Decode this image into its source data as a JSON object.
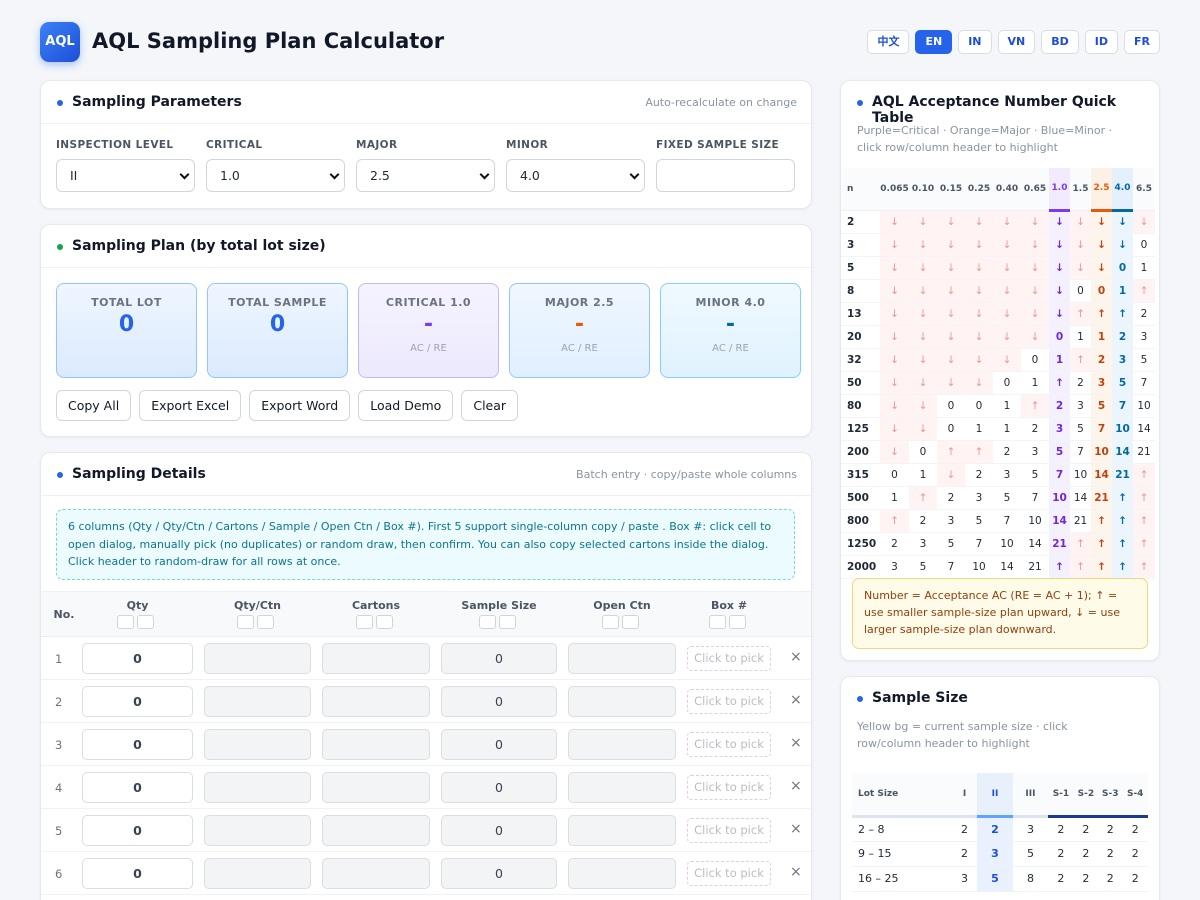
{
  "header": {
    "logo": "AQL",
    "title": "AQL Sampling Plan Calculator",
    "languages": [
      "中文",
      "EN",
      "IN",
      "VN",
      "BD",
      "ID",
      "FR"
    ],
    "active_language": "EN"
  },
  "params": {
    "title": "Sampling Parameters",
    "hint": "Auto-recalculate on change",
    "fields": [
      {
        "label": "INSPECTION LEVEL",
        "value": "II"
      },
      {
        "label": "CRITICAL",
        "value": "1.0"
      },
      {
        "label": "MAJOR",
        "value": "2.5"
      },
      {
        "label": "MINOR",
        "value": "4.0"
      },
      {
        "label": "FIXED SAMPLE SIZE",
        "value": ""
      }
    ]
  },
  "plan": {
    "title": "Sampling Plan (by total lot size)",
    "stats": [
      {
        "label": "TOTAL LOT",
        "value": "0",
        "sub": ""
      },
      {
        "label": "TOTAL SAMPLE",
        "value": "0",
        "sub": ""
      },
      {
        "label": "CRITICAL 1.0",
        "value": "-",
        "sub": "AC / RE"
      },
      {
        "label": "MAJOR 2.5",
        "value": "-",
        "sub": "AC / RE"
      },
      {
        "label": "MINOR 4.0",
        "value": "-",
        "sub": "AC / RE"
      }
    ],
    "buttons": [
      "Copy All",
      "Export Excel",
      "Export Word",
      "Load Demo",
      "Clear"
    ]
  },
  "details": {
    "title": "Sampling Details",
    "hint": "Batch entry · copy/paste whole columns",
    "note": "6 columns (Qty / Qty/Ctn / Cartons / Sample / Open Ctn / Box #). First 5 support single-column copy / paste . Box #: click cell to open dialog, manually pick (no duplicates) or random draw, then confirm. You can also copy selected cartons inside the dialog. Click header to random-draw for all rows at once.",
    "columns": [
      "No.",
      "Qty",
      "Qty/Ctn",
      "Cartons",
      "Sample Size",
      "Open Ctn",
      "Box #"
    ],
    "rows": [
      {
        "no": "1",
        "qty": "0",
        "qty_ctn": "",
        "cartons": "",
        "sample": "0",
        "open_ctn": "",
        "box": "Click to pick"
      },
      {
        "no": "2",
        "qty": "0",
        "qty_ctn": "",
        "cartons": "",
        "sample": "0",
        "open_ctn": "",
        "box": "Click to pick"
      },
      {
        "no": "3",
        "qty": "0",
        "qty_ctn": "",
        "cartons": "",
        "sample": "0",
        "open_ctn": "",
        "box": "Click to pick"
      },
      {
        "no": "4",
        "qty": "0",
        "qty_ctn": "",
        "cartons": "",
        "sample": "0",
        "open_ctn": "",
        "box": "Click to pick"
      },
      {
        "no": "5",
        "qty": "0",
        "qty_ctn": "",
        "cartons": "",
        "sample": "0",
        "open_ctn": "",
        "box": "Click to pick"
      },
      {
        "no": "6",
        "qty": "0",
        "qty_ctn": "",
        "cartons": "",
        "sample": "0",
        "open_ctn": "",
        "box": "Click to pick"
      }
    ],
    "remove_symbol": "×"
  },
  "quick": {
    "title": "AQL Acceptance Number Quick Table",
    "subtitle": "Purple=Critical · Orange=Major · Blue=Minor · click row/column header to highlight",
    "columns": [
      "n",
      "0.065",
      "0.10",
      "0.15",
      "0.25",
      "0.40",
      "0.65",
      "1.0",
      "1.5",
      "2.5",
      "4.0",
      "6.5"
    ],
    "rows": [
      [
        "2",
        "↓",
        "↓",
        "↓",
        "↓",
        "↓",
        "↓",
        "↓",
        "↓",
        "↓",
        "↓",
        "↓"
      ],
      [
        "3",
        "↓",
        "↓",
        "↓",
        "↓",
        "↓",
        "↓",
        "↓",
        "↓",
        "↓",
        "↓",
        "0"
      ],
      [
        "5",
        "↓",
        "↓",
        "↓",
        "↓",
        "↓",
        "↓",
        "↓",
        "↓",
        "↓",
        "0",
        "1"
      ],
      [
        "8",
        "↓",
        "↓",
        "↓",
        "↓",
        "↓",
        "↓",
        "↓",
        "0",
        "0",
        "1",
        "↑"
      ],
      [
        "13",
        "↓",
        "↓",
        "↓",
        "↓",
        "↓",
        "↓",
        "↓",
        "↑",
        "↑",
        "↑",
        "2"
      ],
      [
        "20",
        "↓",
        "↓",
        "↓",
        "↓",
        "↓",
        "↓",
        "0",
        "1",
        "1",
        "2",
        "3"
      ],
      [
        "32",
        "↓",
        "↓",
        "↓",
        "↓",
        "↓",
        "0",
        "1",
        "↑",
        "2",
        "3",
        "5"
      ],
      [
        "50",
        "↓",
        "↓",
        "↓",
        "↓",
        "0",
        "1",
        "↑",
        "2",
        "3",
        "5",
        "7"
      ],
      [
        "80",
        "↓",
        "↓",
        "0",
        "0",
        "1",
        "↑",
        "2",
        "3",
        "5",
        "7",
        "10"
      ],
      [
        "125",
        "↓",
        "↓",
        "0",
        "1",
        "1",
        "2",
        "3",
        "5",
        "7",
        "10",
        "14"
      ],
      [
        "200",
        "↓",
        "0",
        "↑",
        "↑",
        "2",
        "3",
        "5",
        "7",
        "10",
        "14",
        "21"
      ],
      [
        "315",
        "0",
        "1",
        "↓",
        "2",
        "3",
        "5",
        "7",
        "10",
        "14",
        "21",
        "↑"
      ],
      [
        "500",
        "1",
        "↑",
        "2",
        "3",
        "5",
        "7",
        "10",
        "14",
        "21",
        "↑",
        "↑"
      ],
      [
        "800",
        "↑",
        "2",
        "3",
        "5",
        "7",
        "10",
        "14",
        "21",
        "↑",
        "↑",
        "↑"
      ],
      [
        "1250",
        "2",
        "3",
        "5",
        "7",
        "10",
        "14",
        "21",
        "↑",
        "↑",
        "↑",
        "↑"
      ],
      [
        "2000",
        "3",
        "5",
        "7",
        "10",
        "14",
        "21",
        "↑",
        "↑",
        "↑",
        "↑",
        "↑"
      ]
    ],
    "legend": "Number = Acceptance AC (RE = AC + 1); ↑ = use smaller sample-size plan upward, ↓ = use larger sample-size plan downward."
  },
  "sample_table": {
    "title": "Sample Size",
    "subtitle": "Yellow bg = current sample size · click row/column header to highlight",
    "columns": [
      "Lot Size",
      "I",
      "II",
      "III",
      "S-1",
      "S-2",
      "S-3",
      "S-4"
    ],
    "rows": [
      [
        "2 – 8",
        "2",
        "2",
        "3",
        "2",
        "2",
        "2",
        "2"
      ],
      [
        "9 – 15",
        "2",
        "3",
        "5",
        "2",
        "2",
        "2",
        "2"
      ],
      [
        "16 – 25",
        "3",
        "5",
        "8",
        "2",
        "2",
        "2",
        "2"
      ]
    ]
  },
  "colors": {
    "accent": "#2563eb",
    "critical": "#7c3aed",
    "major": "#ea580c",
    "minor": "#0369a1"
  }
}
